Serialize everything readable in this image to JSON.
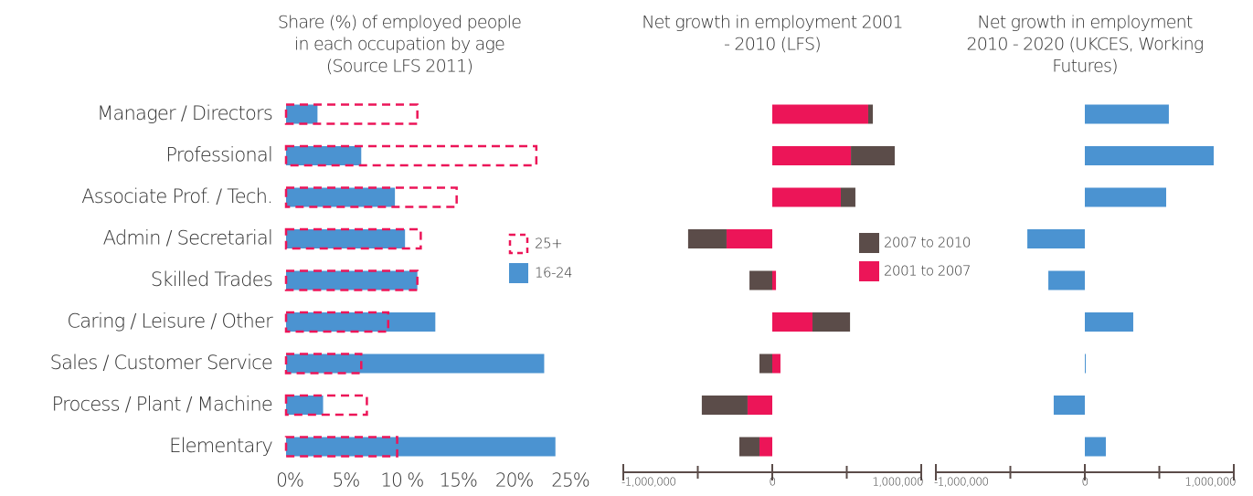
{
  "chart_data": [
    {
      "type": "hbar-overlay",
      "title": [
        "Share (%) of employed people",
        "in each occupation by age",
        "(Source LFS 2011)"
      ],
      "categories": [
        "Manager / Directors",
        "Professional",
        "Associate Prof. / Tech.",
        "Admin / Secretarial",
        "Skilled Trades",
        "Caring / Leisure / Other",
        "Sales / Customer Service",
        "Process / Plant / Machine",
        "Elementary"
      ],
      "series": [
        {
          "name": "25+",
          "color": "#ec1558",
          "style": "dashed",
          "values": [
            11.7,
            22.3,
            15.2,
            12,
            11.7,
            9.1,
            6.7,
            7.2,
            9.9
          ]
        },
        {
          "name": "16-24",
          "color": "#4b93d1",
          "style": "solid",
          "values": [
            2.8,
            6.7,
            9.7,
            10.6,
            11.7,
            13.3,
            23,
            3.3,
            24
          ]
        }
      ],
      "xlim": [
        0,
        25
      ],
      "xticks": [
        {
          "value": 0,
          "label": "0%"
        },
        {
          "value": 5,
          "label": "5%"
        },
        {
          "value": 10,
          "label": "10 %"
        },
        {
          "value": 15,
          "label": "15%"
        },
        {
          "value": 20,
          "label": "20%"
        },
        {
          "value": 25,
          "label": "25%"
        }
      ]
    },
    {
      "type": "hbar-stacked",
      "title": [
        "Net growth in employment 2001",
        "- 2010 (LFS)"
      ],
      "series": [
        {
          "name": "2001 to 2007",
          "color": "#ec1558",
          "values": [
            644000,
            528000,
            460000,
            -307000,
            25000,
            270000,
            55000,
            -166000,
            -86000
          ]
        },
        {
          "name": "2007 to 2010",
          "color": "#5b4c49",
          "values": [
            31000,
            294000,
            98000,
            -258000,
            -153000,
            252000,
            -86000,
            -307000,
            -135000
          ]
        }
      ],
      "xlim": [
        -1000000,
        1000000
      ],
      "xticks": [
        {
          "value": -1000000,
          "label": "-1,000,000"
        },
        0,
        {
          "value": 1000000,
          "label": "1,000,000"
        }
      ],
      "xminor": [
        -500000,
        500000
      ]
    },
    {
      "type": "hbar",
      "title": [
        "Net growth in employment",
        "2010 - 2020 (UKCES, Working",
        "Futures)"
      ],
      "color": "#4b93d1",
      "values": [
        564000,
        865000,
        546000,
        -386000,
        -245000,
        325000,
        6000,
        -209000,
        141000
      ],
      "xlim": [
        -1000000,
        1000000
      ],
      "xticks": [
        {
          "value": -1000000,
          "label": "-1,000,000"
        },
        0,
        {
          "value": 1000000,
          "label": "1,000,000"
        }
      ],
      "xminor": [
        -500000,
        500000
      ]
    }
  ]
}
